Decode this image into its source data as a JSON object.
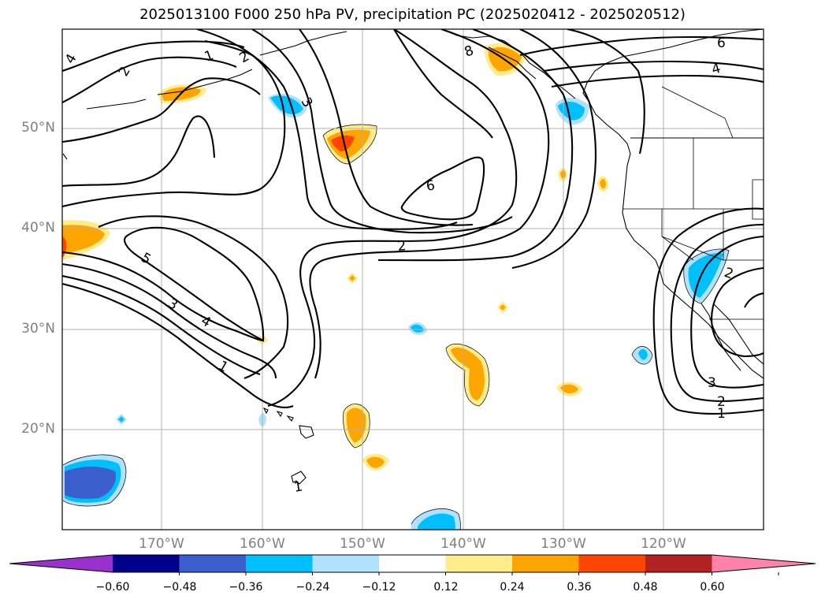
{
  "title": "2025013100 F000 250 hPa PV, precipitation PC (2025020412 - 2025020512)",
  "lat_labels": [
    "50°N",
    "40°N",
    "30°N",
    "20°N"
  ],
  "lon_labels": [
    "170°W",
    "160°W",
    "150°W",
    "140°W",
    "130°W",
    "120°W"
  ],
  "colorbar": {
    "ticks": [
      "−0.60",
      "−0.48",
      "−0.36",
      "−0.24",
      "−0.12",
      "0.12",
      "0.24",
      "0.36",
      "0.48",
      "0.60"
    ],
    "colors": [
      "#9932cc",
      "#00008b",
      "#3a5fcd",
      "#00bfff",
      "#b0e2ff",
      "#ffffff",
      "#ffec8b",
      "#ffa500",
      "#ff4500",
      "#b22222",
      "#ff82ab"
    ]
  },
  "contour_labels": [
    "4",
    "2",
    "1",
    "2",
    "3",
    "8",
    "6",
    "4",
    "6",
    "2",
    "5",
    "3",
    "4",
    "1",
    "2",
    "3",
    "2",
    "1",
    "1"
  ]
}
